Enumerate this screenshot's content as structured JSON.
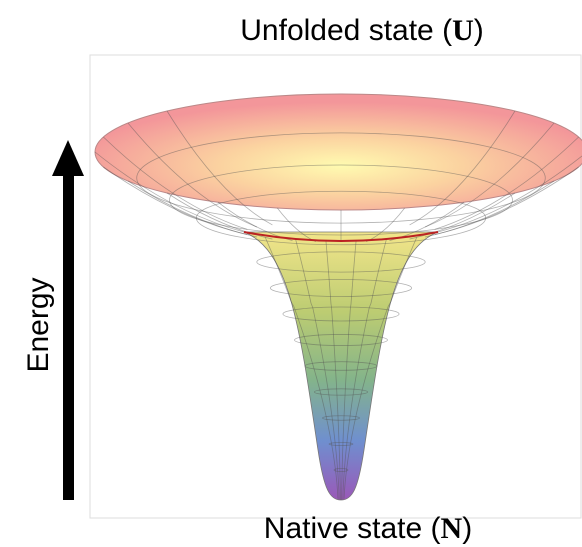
{
  "top_label": {
    "prefix": "Unfolded state (",
    "symbol": "U",
    "suffix": ")"
  },
  "bottom_label": {
    "prefix": "Native state (",
    "symbol": "N",
    "suffix": ")"
  },
  "axis_label": "Energy"
}
